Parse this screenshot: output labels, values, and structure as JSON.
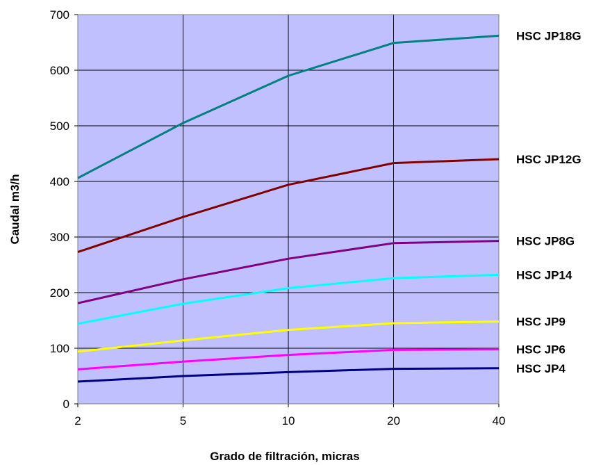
{
  "chart_data": {
    "type": "line",
    "title": "",
    "xlabel": "Grado de filtración, micras",
    "ylabel": "Caudal m3/h",
    "categories": [
      "2",
      "5",
      "10",
      "20",
      "40"
    ],
    "ylim": [
      0,
      700
    ],
    "yticks": [
      "0",
      "100",
      "200",
      "300",
      "400",
      "500",
      "600",
      "700"
    ],
    "grid": true,
    "plot_background": "#c0c0ff",
    "series": [
      {
        "name": "HSC JP18G",
        "color": "#008080",
        "values": [
          406,
          505,
          590,
          649,
          662
        ]
      },
      {
        "name": "HSC JP12G",
        "color": "#800000",
        "values": [
          273,
          336,
          394,
          433,
          440
        ]
      },
      {
        "name": "HSC JP8G",
        "color": "#800080",
        "values": [
          181,
          224,
          261,
          289,
          293
        ]
      },
      {
        "name": "HSC JP14",
        "color": "#00ffff",
        "values": [
          144,
          180,
          208,
          226,
          232
        ]
      },
      {
        "name": "HSC JP9",
        "color": "#ffff00",
        "values": [
          94,
          114,
          133,
          145,
          148
        ]
      },
      {
        "name": "HSC JP6",
        "color": "#ff00ff",
        "values": [
          62,
          76,
          88,
          97,
          98
        ]
      },
      {
        "name": "HSC JP4",
        "color": "#000080",
        "values": [
          40,
          50,
          57,
          63,
          64
        ]
      }
    ]
  }
}
